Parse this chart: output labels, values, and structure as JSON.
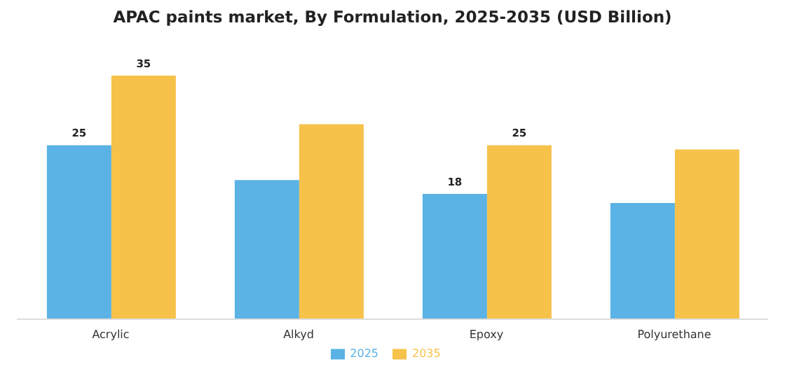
{
  "chart_data": {
    "type": "bar",
    "title": "APAC paints market, By Formulation, 2025-2035 (USD Billion)",
    "categories": [
      "Acrylic",
      "Alkyd",
      "Epoxy",
      "Polyurethane"
    ],
    "series": [
      {
        "name": "2025",
        "color": "#5ab2e5",
        "values": [
          25,
          20,
          18,
          16.7
        ],
        "value_labels": [
          "25",
          null,
          "18",
          null
        ]
      },
      {
        "name": "2035",
        "color": "#f7c24a",
        "values": [
          35,
          28,
          25,
          24.4
        ],
        "value_labels": [
          "35",
          null,
          "25",
          null
        ]
      }
    ],
    "legend": "bottom",
    "grid": false
  }
}
